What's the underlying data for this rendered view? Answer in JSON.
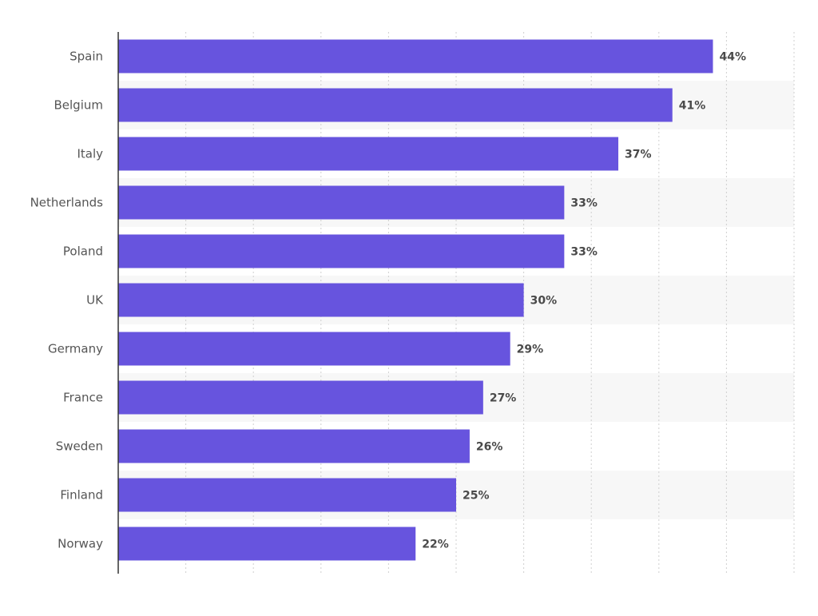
{
  "chart_data": {
    "type": "bar",
    "orientation": "horizontal",
    "categories": [
      "Spain",
      "Belgium",
      "Italy",
      "Netherlands",
      "Poland",
      "UK",
      "Germany",
      "France",
      "Sweden",
      "Finland",
      "Norway"
    ],
    "values": [
      44,
      41,
      37,
      33,
      33,
      30,
      29,
      27,
      26,
      25,
      22
    ],
    "value_labels": [
      "44%",
      "41%",
      "37%",
      "33%",
      "33%",
      "30%",
      "29%",
      "27%",
      "26%",
      "25%",
      "22%"
    ],
    "title": "",
    "xlabel": "",
    "ylabel": "",
    "xlim": [
      0,
      50
    ],
    "grid": true,
    "legend": "none",
    "bar_color": "#6754de",
    "stripe_color": "#f7f7f7"
  }
}
